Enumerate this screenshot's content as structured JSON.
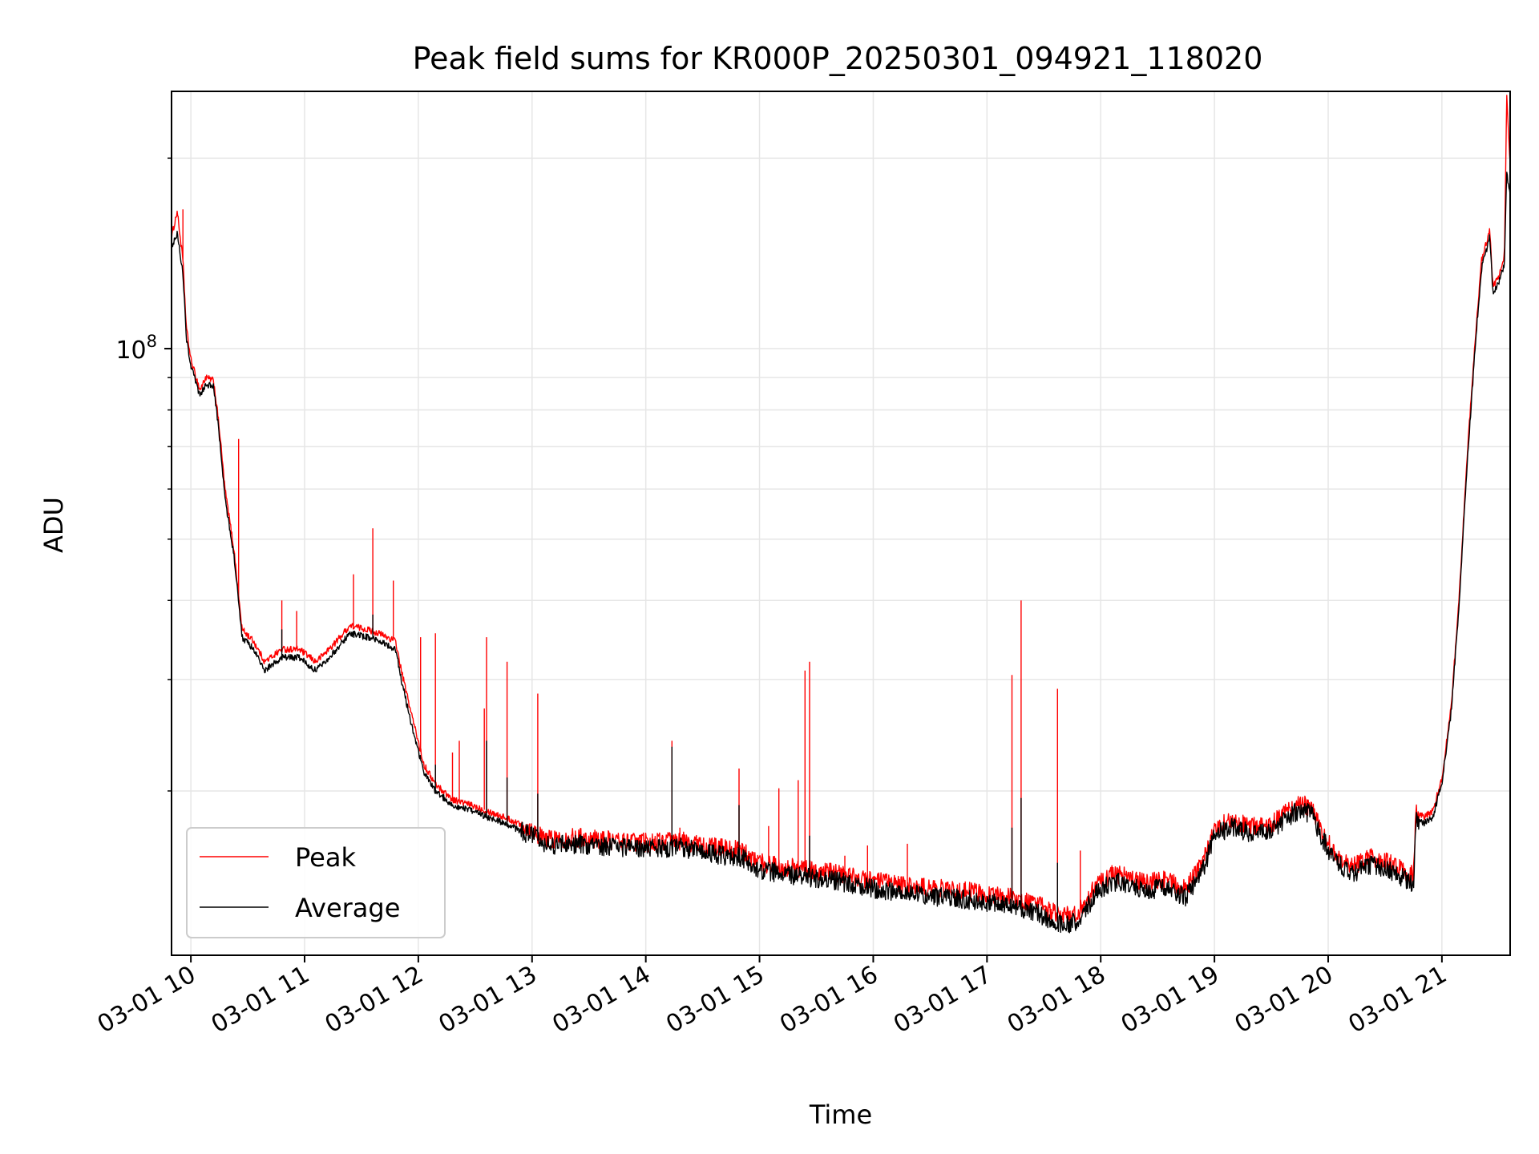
{
  "chart_data": {
    "type": "line",
    "title": "Peak field sums for KR000P_20250301_094921_118020",
    "xlabel": "Time",
    "ylabel": "ADU",
    "x_range_hours": [
      9.83,
      21.6
    ],
    "y_scale": "log",
    "y_range": [
      11000000,
      255000000
    ],
    "y_major_ticks": [
      {
        "value": 100000000,
        "label_base": "10",
        "label_exp": "8"
      }
    ],
    "y_minor_ticks": [
      20000000,
      30000000,
      40000000,
      50000000,
      60000000,
      70000000,
      80000000,
      90000000,
      200000000
    ],
    "x_ticks": [
      {
        "hour": 10,
        "label": "03-01 10"
      },
      {
        "hour": 11,
        "label": "03-01 11"
      },
      {
        "hour": 12,
        "label": "03-01 12"
      },
      {
        "hour": 13,
        "label": "03-01 13"
      },
      {
        "hour": 14,
        "label": "03-01 14"
      },
      {
        "hour": 15,
        "label": "03-01 15"
      },
      {
        "hour": 16,
        "label": "03-01 16"
      },
      {
        "hour": 17,
        "label": "03-01 17"
      },
      {
        "hour": 18,
        "label": "03-01 18"
      },
      {
        "hour": 19,
        "label": "03-01 19"
      },
      {
        "hour": 20,
        "label": "03-01 20"
      },
      {
        "hour": 21,
        "label": "03-01 21"
      }
    ],
    "grid": true,
    "legend_position": "lower-left",
    "series": [
      {
        "name": "Peak",
        "color": "#ff0000",
        "points": [
          [
            9.83,
            150000000
          ],
          [
            9.88,
            165000000
          ],
          [
            9.93,
            138000000
          ],
          [
            9.96,
            108000000
          ],
          [
            10.0,
            96000000
          ],
          [
            10.08,
            86000000
          ],
          [
            10.13,
            90000000
          ],
          [
            10.2,
            89000000
          ],
          [
            10.25,
            75000000
          ],
          [
            10.3,
            60000000
          ],
          [
            10.38,
            48000000
          ],
          [
            10.45,
            36000000
          ],
          [
            10.55,
            34500000
          ],
          [
            10.65,
            32000000
          ],
          [
            10.8,
            33500000
          ],
          [
            10.95,
            33500000
          ],
          [
            11.1,
            32000000
          ],
          [
            11.25,
            34000000
          ],
          [
            11.4,
            36500000
          ],
          [
            11.55,
            36000000
          ],
          [
            11.65,
            35500000
          ],
          [
            11.8,
            34500000
          ],
          [
            11.85,
            31000000
          ],
          [
            11.95,
            26000000
          ],
          [
            12.05,
            22000000
          ],
          [
            12.15,
            20500000
          ],
          [
            12.3,
            19400000
          ],
          [
            12.5,
            18900000
          ],
          [
            12.75,
            18200000
          ],
          [
            13.0,
            17400000
          ],
          [
            13.1,
            16800000
          ],
          [
            13.4,
            16900000
          ],
          [
            13.7,
            16700000
          ],
          [
            14.0,
            16600000
          ],
          [
            14.3,
            16700000
          ],
          [
            14.6,
            16300000
          ],
          [
            14.85,
            16100000
          ],
          [
            14.95,
            15500000
          ],
          [
            15.2,
            15200000
          ],
          [
            15.45,
            15000000
          ],
          [
            15.7,
            14800000
          ],
          [
            16.0,
            14400000
          ],
          [
            16.4,
            14100000
          ],
          [
            16.8,
            13900000
          ],
          [
            17.2,
            13600000
          ],
          [
            17.45,
            13200000
          ],
          [
            17.65,
            12700000
          ],
          [
            17.8,
            12800000
          ],
          [
            17.95,
            14100000
          ],
          [
            18.1,
            14800000
          ],
          [
            18.25,
            14600000
          ],
          [
            18.4,
            14300000
          ],
          [
            18.55,
            14500000
          ],
          [
            18.75,
            14000000
          ],
          [
            18.9,
            15400000
          ],
          [
            19.0,
            17400000
          ],
          [
            19.15,
            18000000
          ],
          [
            19.3,
            17600000
          ],
          [
            19.5,
            17700000
          ],
          [
            19.65,
            18600000
          ],
          [
            19.75,
            19100000
          ],
          [
            19.85,
            18800000
          ],
          [
            19.92,
            17600000
          ],
          [
            20.05,
            16000000
          ],
          [
            20.2,
            15100000
          ],
          [
            20.35,
            15700000
          ],
          [
            20.5,
            15500000
          ],
          [
            20.65,
            15000000
          ],
          [
            20.75,
            14700000
          ],
          [
            20.77,
            18400000
          ],
          [
            20.85,
            18200000
          ],
          [
            20.92,
            18600000
          ],
          [
            21.0,
            21000000
          ],
          [
            21.08,
            27000000
          ],
          [
            21.15,
            40000000
          ],
          [
            21.22,
            67000000
          ],
          [
            21.3,
            108000000
          ],
          [
            21.35,
            138000000
          ],
          [
            21.42,
            154000000
          ],
          [
            21.45,
            125000000
          ],
          [
            21.5,
            130000000
          ],
          [
            21.55,
            140000000
          ],
          [
            21.57,
            250000000
          ],
          [
            21.6,
            195000000
          ]
        ],
        "spikes": [
          [
            9.93,
            166000000
          ],
          [
            10.42,
            72000000
          ],
          [
            10.8,
            40000000
          ],
          [
            10.93,
            38500000
          ],
          [
            11.43,
            44000000
          ],
          [
            11.6,
            52000000
          ],
          [
            11.78,
            43000000
          ],
          [
            12.02,
            35000000
          ],
          [
            12.15,
            35500000
          ],
          [
            12.3,
            23000000
          ],
          [
            12.36,
            24000000
          ],
          [
            12.58,
            27000000
          ],
          [
            12.6,
            35000000
          ],
          [
            12.78,
            32000000
          ],
          [
            13.05,
            28500000
          ],
          [
            14.23,
            24000000
          ],
          [
            14.3,
            17500000
          ],
          [
            14.82,
            21700000
          ],
          [
            15.08,
            17600000
          ],
          [
            15.17,
            20200000
          ],
          [
            15.34,
            20800000
          ],
          [
            15.4,
            31000000
          ],
          [
            15.44,
            32000000
          ],
          [
            15.75,
            15800000
          ],
          [
            15.95,
            16400000
          ],
          [
            16.3,
            16500000
          ],
          [
            17.22,
            30500000
          ],
          [
            17.3,
            40000000
          ],
          [
            17.62,
            29000000
          ],
          [
            17.82,
            16100000
          ]
        ]
      },
      {
        "name": "Average",
        "color": "#000000",
        "points": [
          [
            9.83,
            145000000
          ],
          [
            9.88,
            152000000
          ],
          [
            9.93,
            132000000
          ],
          [
            9.96,
            104000000
          ],
          [
            10.0,
            94000000
          ],
          [
            10.08,
            84000000
          ],
          [
            10.13,
            88000000
          ],
          [
            10.2,
            87000000
          ],
          [
            10.25,
            73000000
          ],
          [
            10.3,
            58000000
          ],
          [
            10.38,
            47000000
          ],
          [
            10.45,
            35000000
          ],
          [
            10.55,
            33500000
          ],
          [
            10.65,
            31000000
          ],
          [
            10.8,
            32500000
          ],
          [
            10.95,
            32500000
          ],
          [
            11.1,
            31000000
          ],
          [
            11.25,
            33000000
          ],
          [
            11.4,
            35500000
          ],
          [
            11.55,
            35000000
          ],
          [
            11.65,
            34500000
          ],
          [
            11.8,
            33500000
          ],
          [
            11.85,
            30000000
          ],
          [
            11.95,
            25000000
          ],
          [
            12.05,
            21400000
          ],
          [
            12.15,
            20000000
          ],
          [
            12.3,
            19000000
          ],
          [
            12.5,
            18500000
          ],
          [
            12.75,
            17800000
          ],
          [
            13.0,
            17000000
          ],
          [
            13.1,
            16400000
          ],
          [
            13.4,
            16500000
          ],
          [
            13.7,
            16300000
          ],
          [
            14.0,
            16200000
          ],
          [
            14.3,
            16300000
          ],
          [
            14.6,
            15900000
          ],
          [
            14.85,
            15700000
          ],
          [
            14.95,
            15100000
          ],
          [
            15.2,
            14800000
          ],
          [
            15.45,
            14600000
          ],
          [
            15.7,
            14400000
          ],
          [
            16.0,
            14000000
          ],
          [
            16.4,
            13700000
          ],
          [
            16.8,
            13500000
          ],
          [
            17.2,
            13200000
          ],
          [
            17.45,
            12800000
          ],
          [
            17.65,
            12300000
          ],
          [
            17.8,
            12400000
          ],
          [
            17.95,
            13700000
          ],
          [
            18.1,
            14400000
          ],
          [
            18.25,
            14200000
          ],
          [
            18.4,
            13900000
          ],
          [
            18.55,
            14100000
          ],
          [
            18.75,
            13600000
          ],
          [
            18.9,
            15000000
          ],
          [
            19.0,
            17000000
          ],
          [
            19.15,
            17600000
          ],
          [
            19.3,
            17200000
          ],
          [
            19.5,
            17300000
          ],
          [
            19.65,
            18200000
          ],
          [
            19.75,
            18700000
          ],
          [
            19.85,
            18400000
          ],
          [
            19.92,
            17200000
          ],
          [
            20.05,
            15600000
          ],
          [
            20.2,
            14700000
          ],
          [
            20.35,
            15300000
          ],
          [
            20.5,
            15100000
          ],
          [
            20.65,
            14600000
          ],
          [
            20.75,
            14300000
          ],
          [
            20.77,
            18000000
          ],
          [
            20.85,
            17800000
          ],
          [
            20.92,
            18200000
          ],
          [
            21.0,
            20600000
          ],
          [
            21.08,
            26500000
          ],
          [
            21.15,
            39000000
          ],
          [
            21.22,
            65000000
          ],
          [
            21.3,
            105000000
          ],
          [
            21.35,
            134000000
          ],
          [
            21.42,
            150000000
          ],
          [
            21.45,
            122000000
          ],
          [
            21.5,
            127000000
          ],
          [
            21.55,
            136000000
          ],
          [
            21.57,
            190000000
          ],
          [
            21.6,
            175000000
          ]
        ],
        "spikes": [
          [
            10.42,
            40000000
          ],
          [
            10.8,
            36000000
          ],
          [
            11.6,
            38000000
          ],
          [
            12.15,
            22000000
          ],
          [
            12.6,
            24000000
          ],
          [
            12.78,
            21000000
          ],
          [
            13.05,
            19800000
          ],
          [
            14.23,
            23500000
          ],
          [
            14.82,
            19000000
          ],
          [
            15.44,
            17000000
          ],
          [
            17.22,
            17500000
          ],
          [
            17.3,
            19500000
          ],
          [
            17.62,
            15400000
          ]
        ]
      }
    ]
  }
}
